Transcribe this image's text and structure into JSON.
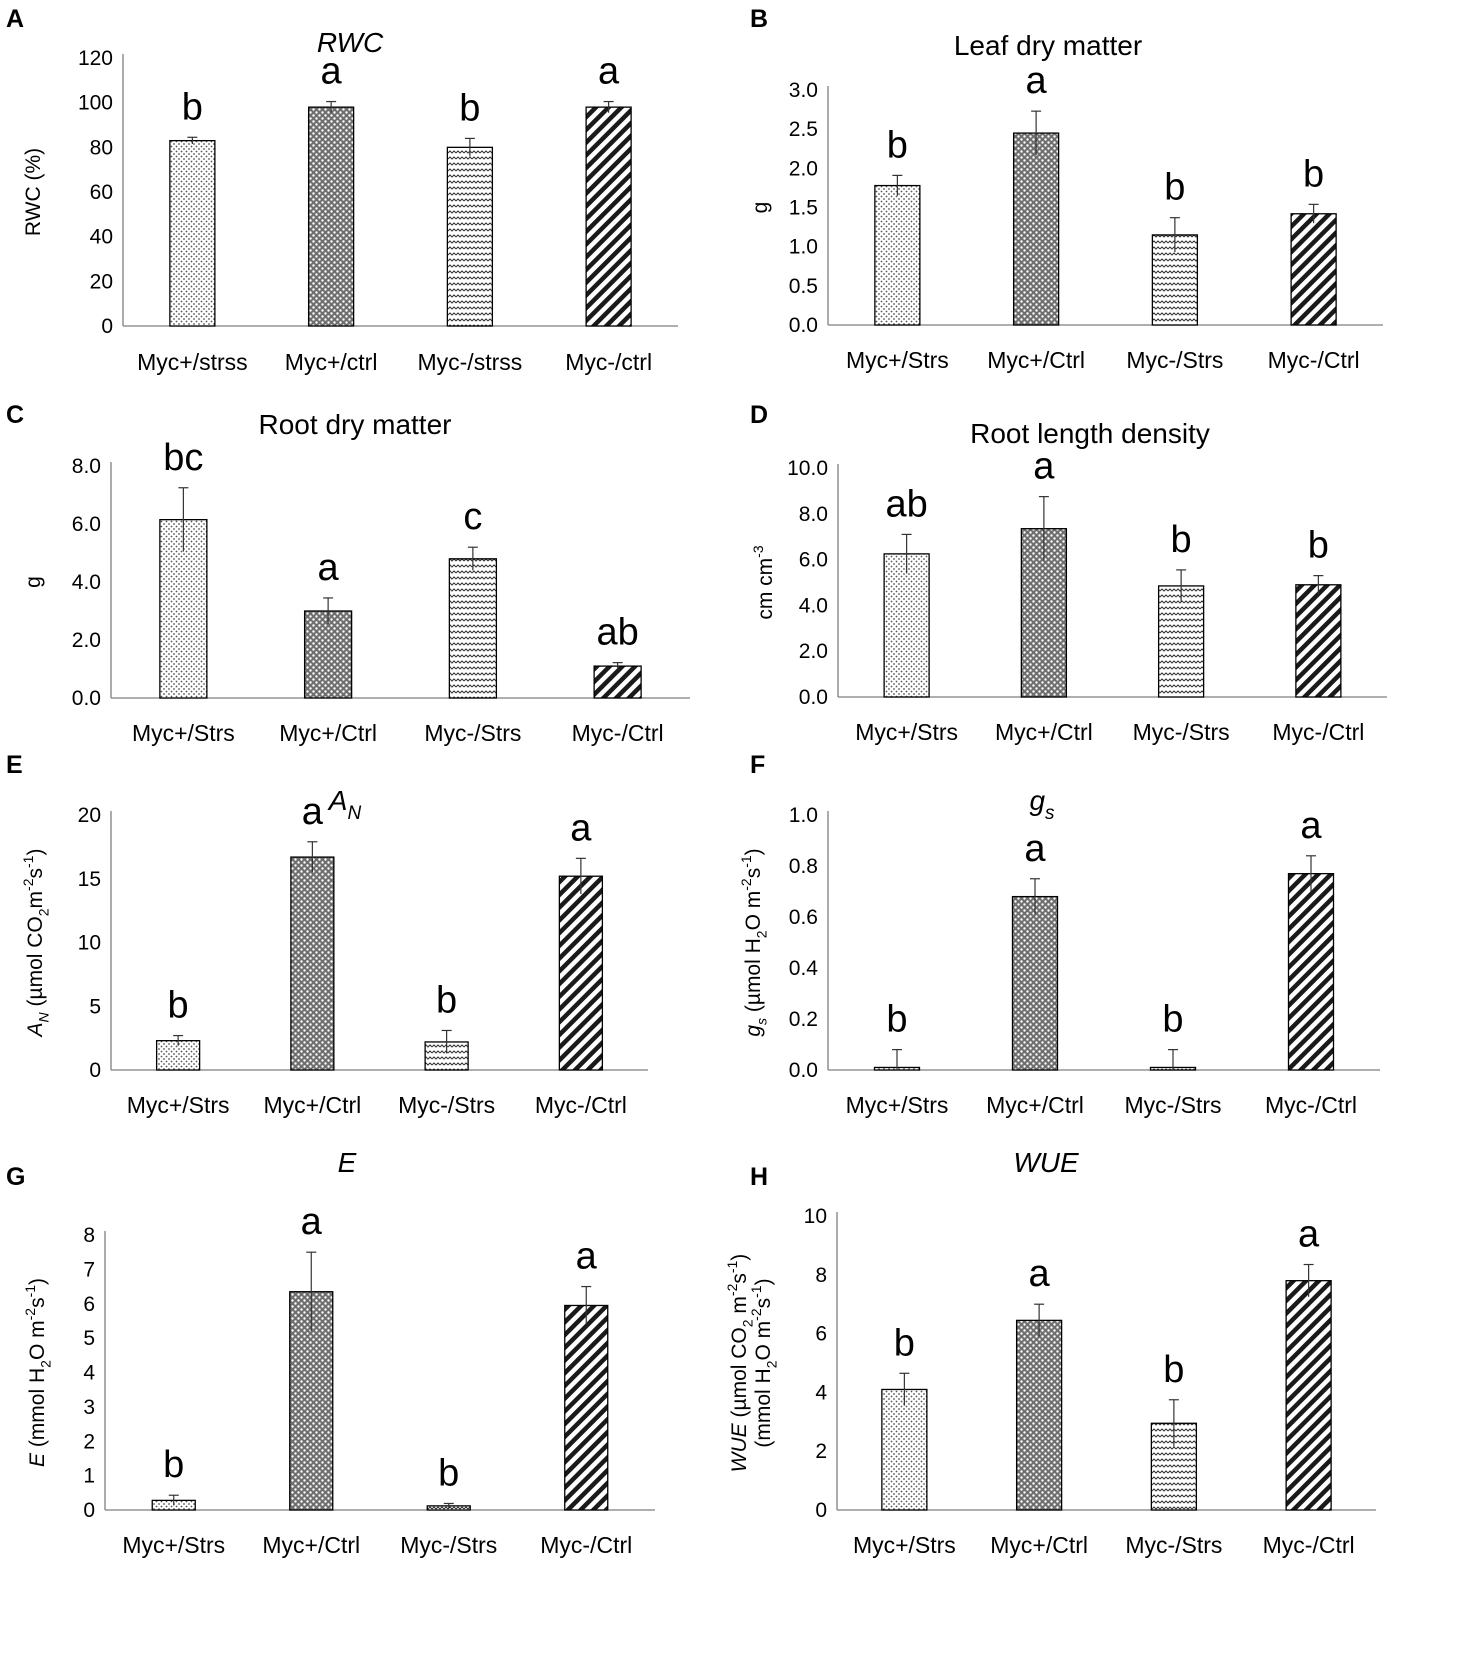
{
  "figure": {
    "patterns": [
      "dots",
      "crosshatch",
      "waves",
      "diagonal"
    ],
    "colors": {
      "ink": "#000000",
      "axis": "#7f7f7f",
      "background": "#ffffff"
    }
  },
  "chart_data": [
    {
      "panel": "A",
      "type": "bar",
      "title": "RWC",
      "title_italic": true,
      "ylabel": [
        [
          {
            "t": "RWC (%)"
          }
        ]
      ],
      "ylim": [
        0,
        120
      ],
      "yticks": [
        0,
        20,
        40,
        60,
        80,
        100,
        120
      ],
      "decimals": 0,
      "categories": [
        "Myc+/strss",
        "Myc+/ctrl",
        "Myc-/strss",
        "Myc-/ctrl"
      ],
      "values": [
        83,
        98,
        80,
        98
      ],
      "errors": [
        1.5,
        2.5,
        4,
        2.5
      ],
      "letters": [
        "b",
        "a",
        "b",
        "a"
      ]
    },
    {
      "panel": "B",
      "type": "bar",
      "title": "Leaf dry matter",
      "title_italic": false,
      "ylabel": [
        [
          {
            "t": "g"
          }
        ]
      ],
      "ylim": [
        0,
        3.0
      ],
      "yticks": [
        0,
        0.5,
        1.0,
        1.5,
        2.0,
        2.5,
        3.0
      ],
      "decimals": 1,
      "categories": [
        "Myc+/Strs",
        "Myc+/Ctrl",
        "Myc-/Strs",
        "Myc-/Ctrl"
      ],
      "values": [
        1.78,
        2.45,
        1.15,
        1.42
      ],
      "errors": [
        0.13,
        0.28,
        0.22,
        0.12
      ],
      "letters": [
        "b",
        "a",
        "b",
        "b"
      ]
    },
    {
      "panel": "C",
      "type": "bar",
      "title": "Root dry matter",
      "title_italic": false,
      "ylabel": [
        [
          {
            "t": "g"
          }
        ]
      ],
      "ylim": [
        0,
        8.0
      ],
      "yticks": [
        0,
        2.0,
        4.0,
        6.0,
        8.0
      ],
      "decimals": 1,
      "categories": [
        "Myc+/Strs",
        "Myc+/Ctrl",
        "Myc-/Strs",
        "Myc-/Ctrl"
      ],
      "values": [
        6.15,
        3.0,
        4.8,
        1.1
      ],
      "errors": [
        1.1,
        0.45,
        0.4,
        0.12
      ],
      "letters": [
        "bc",
        "a",
        "c",
        "ab"
      ]
    },
    {
      "panel": "D",
      "type": "bar",
      "title": "Root length density",
      "title_italic": false,
      "ylabel": [
        [
          {
            "t": "cm  cm"
          },
          {
            "t": "-3",
            "sup": true
          }
        ]
      ],
      "ylim": [
        0,
        10.0
      ],
      "yticks": [
        0,
        2.0,
        4.0,
        6.0,
        8.0,
        10.0
      ],
      "decimals": 1,
      "categories": [
        "Myc+/Strs",
        "Myc+/Ctrl",
        "Myc-/Strs",
        "Myc-/Ctrl"
      ],
      "values": [
        6.25,
        7.35,
        4.85,
        4.9
      ],
      "errors": [
        0.85,
        1.4,
        0.7,
        0.4
      ],
      "letters": [
        "ab",
        "a",
        "b",
        "b"
      ]
    },
    {
      "panel": "E",
      "type": "bar",
      "title": [
        {
          "t": "A",
          "i": true
        },
        {
          "t": "N",
          "i": true,
          "sub": true
        }
      ],
      "title_italic": true,
      "ylabel": [
        [
          {
            "t": "A",
            "i": true
          },
          {
            "t": "N",
            "i": true,
            "sub": true
          },
          {
            "t": " (µmol CO"
          },
          {
            "t": "2",
            "sub": true
          },
          {
            "t": "m"
          },
          {
            "t": "-2",
            "sup": true
          },
          {
            "t": "s"
          },
          {
            "t": "-1",
            "sup": true
          },
          {
            "t": ")"
          }
        ]
      ],
      "ylim": [
        0,
        20
      ],
      "yticks": [
        0,
        5,
        10,
        15,
        20
      ],
      "decimals": 0,
      "categories": [
        "Myc+/Strs",
        "Myc+/Ctrl",
        "Myc-/Strs",
        "Myc-/Ctrl"
      ],
      "values": [
        2.3,
        16.7,
        2.2,
        15.2
      ],
      "errors": [
        0.4,
        1.2,
        0.9,
        1.4
      ],
      "letters": [
        "b",
        "a",
        "b",
        "a"
      ]
    },
    {
      "panel": "F",
      "type": "bar",
      "title": [
        {
          "t": "g",
          "i": true
        },
        {
          "t": "s",
          "i": true,
          "sub": true
        }
      ],
      "title_italic": true,
      "ylabel": [
        [
          {
            "t": "g",
            "i": true
          },
          {
            "t": "s",
            "i": true,
            "sub": true
          },
          {
            "t": " (µmol H"
          },
          {
            "t": "2",
            "sub": true
          },
          {
            "t": "O m"
          },
          {
            "t": "-2",
            "sup": true
          },
          {
            "t": "s"
          },
          {
            "t": "-1",
            "sup": true
          },
          {
            "t": ")"
          }
        ]
      ],
      "ylim": [
        0,
        1.0
      ],
      "yticks": [
        0,
        0.2,
        0.4,
        0.6,
        0.8,
        1.0
      ],
      "decimals": 1,
      "categories": [
        "Myc+/Strs",
        "Myc+/Ctrl",
        "Myc-/Strs",
        "Myc-/Ctrl"
      ],
      "values": [
        0.01,
        0.68,
        0.01,
        0.77
      ],
      "errors": [
        0.07,
        0.07,
        0.07,
        0.07
      ],
      "letters": [
        "b",
        "a",
        "b",
        "a"
      ]
    },
    {
      "panel": "G",
      "type": "bar",
      "title": [
        {
          "t": "E",
          "i": true
        }
      ],
      "title_italic": true,
      "ylabel": [
        [
          {
            "t": "E",
            "i": true
          },
          {
            "t": " (mmol H"
          },
          {
            "t": "2",
            "sub": true
          },
          {
            "t": "O m"
          },
          {
            "t": "-2",
            "sup": true
          },
          {
            "t": "s"
          },
          {
            "t": "-1",
            "sup": true
          },
          {
            "t": ")"
          }
        ]
      ],
      "ylim": [
        0,
        8
      ],
      "yticks": [
        0,
        1,
        2,
        3,
        4,
        5,
        6,
        7,
        8
      ],
      "decimals": 0,
      "categories": [
        "Myc+/Strs",
        "Myc+/Ctrl",
        "Myc-/Strs",
        "Myc-/Ctrl"
      ],
      "values": [
        0.28,
        6.35,
        0.12,
        5.95
      ],
      "errors": [
        0.15,
        1.15,
        0.07,
        0.55
      ],
      "letters": [
        "b",
        "a",
        "b",
        "a"
      ]
    },
    {
      "panel": "H",
      "type": "bar",
      "title": [
        {
          "t": "WUE",
          "i": true
        }
      ],
      "title_italic": true,
      "ylabel": [
        [
          {
            "t": "WUE",
            "i": true
          },
          {
            "t": " (µmol CO"
          },
          {
            "t": "2",
            "sub": true
          },
          {
            "t": " m"
          },
          {
            "t": "-2",
            "sup": true
          },
          {
            "t": "s"
          },
          {
            "t": "-1",
            "sup": true
          },
          {
            "t": ")"
          }
        ],
        [
          {
            "t": "(mmol H"
          },
          {
            "t": "2",
            "sub": true
          },
          {
            "t": "O m"
          },
          {
            "t": "-2",
            "sup": true
          },
          {
            "t": "s"
          },
          {
            "t": "-1",
            "sup": true
          },
          {
            "t": ")"
          }
        ]
      ],
      "ylim": [
        0,
        10
      ],
      "yticks": [
        0,
        2,
        4,
        6,
        8,
        10
      ],
      "decimals": 0,
      "categories": [
        "Myc+/Strs",
        "Myc+/Ctrl",
        "Myc-/Strs",
        "Myc-/Ctrl"
      ],
      "values": [
        4.1,
        6.45,
        2.95,
        7.8
      ],
      "errors": [
        0.55,
        0.55,
        0.8,
        0.55
      ],
      "letters": [
        "b",
        "a",
        "b",
        "a"
      ]
    }
  ]
}
